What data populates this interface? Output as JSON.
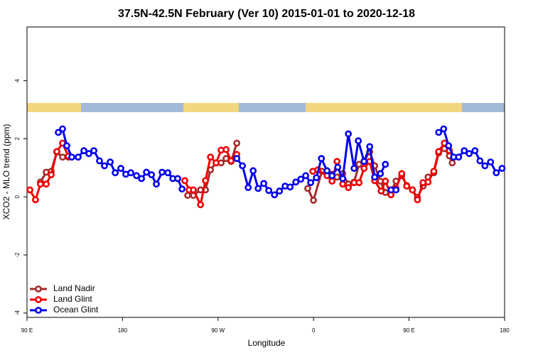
{
  "chart_data": {
    "type": "line",
    "title": "37.5N-42.5N February (Ver 10)   2015-01-01 to 2020-12-18",
    "xlabel": "Longitude",
    "ylabel": "XCO2 - MLO trend (ppm)",
    "xlim": [
      90,
      540
    ],
    "xticks": [
      {
        "value": 90,
        "label": "90 E"
      },
      180,
      {
        "value": 270,
        "label": "90 W"
      },
      {
        "value": 360,
        "label": "0"
      },
      {
        "value": 450,
        "label": "90 E"
      },
      {
        "value": 540,
        "label": "180"
      }
    ],
    "ylim": [
      -4.15,
      5.85
    ],
    "yticks": [
      -4,
      -2,
      0,
      2,
      4
    ],
    "legend": "lower left",
    "series": [
      {
        "name": "Land Nadir",
        "color": "#a52a2a",
        "x": [
          102.7,
          108.1,
          112.8,
          118.1,
          123.5,
          128.9,
          null,
          241.4,
          246.8,
          253.5,
          258.2,
          262.9,
          268.2,
          272.9,
          277.6,
          282.3,
          287.7,
          null,
          354.5,
          359.9,
          367.9,
          372.7,
          377.4,
          382.1,
          387.5,
          392.8,
          398.2,
          402.9,
          407.6,
          412.9,
          417.6,
          423,
          427.7,
          433,
          437.7,
          443.1,
          447.8,
          453.2,
          457.9,
          463.2,
          467.9,
          473.3,
          477.9,
          483.3,
          488,
          490.7
        ],
        "values": [
          0.51,
          0.85,
          0.88,
          1.54,
          1.37,
          1.37,
          null,
          0.05,
          0.05,
          0.24,
          0.24,
          0.93,
          1.17,
          1.17,
          1.32,
          1.22,
          1.85,
          null,
          0.29,
          -0.12,
          0.88,
          0.85,
          0.78,
          0.68,
          0.8,
          0.44,
          0.51,
          1.12,
          1.22,
          1.56,
          1.07,
          0.54,
          0.15,
          0.2,
          0.54,
          0.73,
          0.39,
          0.24,
          -0.02,
          0.37,
          0.68,
          0.83,
          1.51,
          1.66,
          1.41,
          1.17
        ]
      },
      {
        "name": "Land Glint",
        "color": "#ee0000",
        "x": [
          92.7,
          98,
          102.7,
          108.1,
          112.8,
          118.1,
          123.5,
          128.9,
          null,
          238.7,
          242.8,
          246.8,
          253.5,
          258.2,
          262.9,
          268.2,
          272.9,
          277.6,
          282.3,
          287.7,
          null,
          359.3,
          364,
          372.7,
          377.4,
          382.1,
          387.5,
          392.8,
          398.2,
          402.9,
          407.6,
          412.9,
          417.6,
          423.7,
          427.7,
          433,
          437.7,
          443.1,
          447.8,
          453.2,
          457.9,
          463.2,
          467.9,
          473.3,
          477.9,
          483.3,
          488
        ],
        "values": [
          0.24,
          -0.1,
          0.44,
          0.44,
          0.76,
          1.56,
          1.85,
          1.4,
          null,
          0.56,
          0.24,
          0.24,
          -0.27,
          0.56,
          1.37,
          1.17,
          1.61,
          1.63,
          1.24,
          1.46,
          null,
          0.88,
          0.93,
          0.73,
          0.54,
          1.22,
          0.44,
          0.32,
          0.49,
          0.49,
          0.98,
          1.22,
          0.56,
          0.2,
          0.54,
          0.07,
          0.29,
          0.8,
          0.37,
          0.24,
          -0.1,
          0.49,
          0.51,
          0.88,
          1.56,
          1.85,
          1.59
        ]
      },
      {
        "name": "Ocean Glint",
        "color": "#0000ee",
        "x": [
          119.5,
          123.5,
          127.5,
          132.2,
          138.2,
          143.6,
          148.3,
          153,
          158.3,
          163,
          168.4,
          173.1,
          178.4,
          183.1,
          187.8,
          193.2,
          197.9,
          202.6,
          207.3,
          211.9,
          217.3,
          222.7,
          227.4,
          232,
          236.1,
          null,
          287.7,
          293,
          298.4,
          303.1,
          307.8,
          313.1,
          317.8,
          323.2,
          327.9,
          333.2,
          337.9,
          343.3,
          348,
          352.6,
          357.3,
          362.7,
          367.4,
          372.7,
          377.4,
          382.8,
          387.5,
          392.8,
          398.2,
          402.2,
          407.6,
          412.9,
          417.6,
          423,
          427.7,
          null,
          433,
          437.7,
          null,
          477.9,
          482.6,
          487.3,
          492,
          496.7,
          502,
          506.7,
          512.1,
          516.8,
          521.5,
          526.8,
          532.2,
          537.6
        ],
        "values": [
          2.22,
          2.34,
          1.76,
          1.37,
          1.37,
          1.59,
          1.49,
          1.59,
          1.24,
          1.07,
          1.2,
          0.83,
          0.98,
          0.78,
          0.83,
          0.73,
          0.63,
          0.85,
          0.76,
          0.44,
          0.85,
          0.83,
          0.63,
          0.63,
          0.27,
          null,
          1.32,
          1.07,
          0.32,
          0.9,
          0.29,
          0.46,
          0.22,
          0.07,
          0.2,
          0.37,
          0.34,
          0.51,
          0.61,
          0.73,
          0.49,
          0.66,
          1.32,
          0.9,
          0.73,
          1.02,
          0.63,
          2.17,
          0.98,
          1.93,
          1.22,
          1.73,
          0.68,
          0.8,
          1.12,
          null,
          0.24,
          0.24,
          null,
          2.22,
          2.34,
          1.76,
          1.37,
          1.37,
          1.59,
          1.49,
          1.59,
          1.24,
          1.07,
          1.2,
          0.83,
          0.98
        ]
      }
    ]
  }
}
